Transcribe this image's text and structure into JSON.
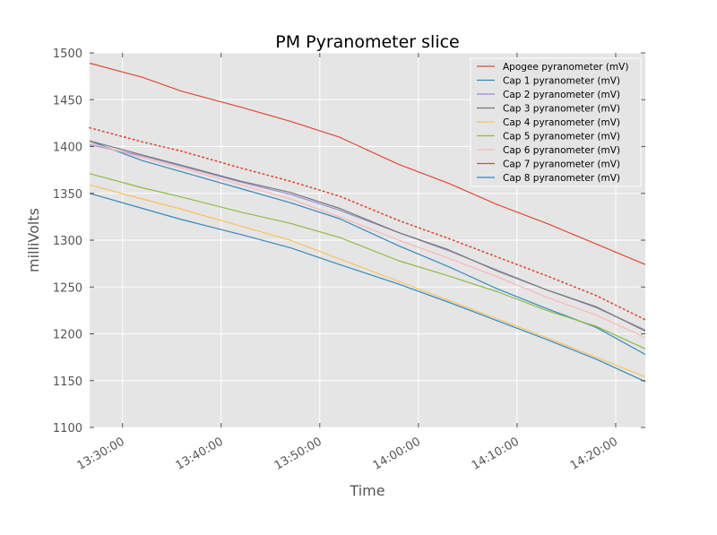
{
  "chart_data": {
    "type": "line",
    "title": "PM Pyranometer slice",
    "xlabel": "Time",
    "ylabel": "milliVolts",
    "ylim": [
      1100,
      1500
    ],
    "yticks": [
      1100,
      1150,
      1200,
      1250,
      1300,
      1350,
      1400,
      1450,
      1500
    ],
    "xlim": [
      "13:26:40",
      "14:23:00"
    ],
    "xticks": [
      "13:30:00",
      "13:40:00",
      "13:50:00",
      "14:00:00",
      "14:10:00",
      "14:20:00"
    ],
    "grid": true,
    "legend_position": "top-right",
    "x": [
      "13:26:40",
      "13:32:00",
      "13:36:00",
      "13:42:00",
      "13:47:00",
      "13:52:00",
      "13:58:00",
      "14:03:00",
      "14:08:00",
      "14:13:00",
      "14:18:00",
      "14:23:00"
    ],
    "series": [
      {
        "name": "Apogee pyranometer (mV)",
        "color": "#e24a33",
        "dash": "dot",
        "values": [
          1420,
          1405,
          1395,
          1377,
          1363,
          1347,
          1321,
          1302,
          1282,
          1262,
          1241,
          1215
        ]
      },
      {
        "name": "Cap 1 pyranometer (mV)",
        "color": "#348abd",
        "values": [
          1406,
          1385,
          1373,
          1355,
          1340,
          1323,
          1294,
          1272,
          1248,
          1227,
          1207,
          1178
        ]
      },
      {
        "name": "Cap 2 pyranometer (mV)",
        "color": "#988ed5",
        "values": [
          1402,
          1390,
          1379,
          1362,
          1349,
          1332,
          1308,
          1289,
          1268,
          1247,
          1228,
          1204
        ]
      },
      {
        "name": "Cap 3 pyranometer (mV)",
        "color": "#777777",
        "values": [
          1406,
          1391,
          1380,
          1363,
          1351,
          1334,
          1308,
          1290,
          1267,
          1247,
          1229,
          1203
        ]
      },
      {
        "name": "Cap 4 pyranometer (mV)",
        "color": "#fbc15e",
        "values": [
          1359,
          1344,
          1333,
          1315,
          1300,
          1280,
          1256,
          1236,
          1216,
          1196,
          1175,
          1154
        ]
      },
      {
        "name": "Cap 5 pyranometer (mV)",
        "color": "#8eba42",
        "values": [
          1371,
          1356,
          1346,
          1330,
          1318,
          1303,
          1278,
          1262,
          1245,
          1225,
          1208,
          1184
        ]
      },
      {
        "name": "Cap 6 pyranometer (mV)",
        "color": "#ffb5b8",
        "values": [
          1404,
          1388,
          1377,
          1359,
          1344,
          1325,
          1300,
          1281,
          1261,
          1239,
          1220,
          1196
        ]
      },
      {
        "name": "Cap 7 pyranometer (mV)",
        "color": "#e24a33",
        "values": [
          1489,
          1474,
          1459,
          1442,
          1427,
          1410,
          1381,
          1361,
          1338,
          1318,
          1296,
          1274
        ]
      },
      {
        "name": "Cap 8 pyranometer (mV)",
        "color": "#348abd",
        "values": [
          1350,
          1334,
          1322,
          1306,
          1292,
          1274,
          1253,
          1234,
          1214,
          1194,
          1173,
          1149
        ]
      }
    ]
  }
}
